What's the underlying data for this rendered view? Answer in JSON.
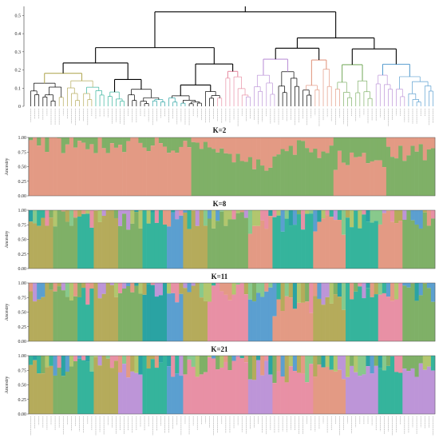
{
  "figure": {
    "palette": {
      "salmon": "#e39a84",
      "green": "#7fb067",
      "teal": "#35b49c",
      "olive": "#b5ab5b",
      "blue": "#5b9fd0",
      "pink": "#e890a5",
      "purple": "#bd95d8",
      "mint": "#88c98c",
      "yellowgreen": "#b2c66e",
      "darkteal": "#2aa3a3"
    },
    "dendrogram": {
      "y_ticks": [
        "0",
        "0.1",
        "0.2",
        "0.3",
        "0.4",
        "0.5"
      ],
      "clade_colors": [
        "#000000",
        "#b5ab5b",
        "#35b49c",
        "#000000",
        "#2aa3a3",
        "#000000",
        "#e890a5",
        "#bd95d8",
        "#000000",
        "#e39a84",
        "#7fb067",
        "#bd95d8",
        "#5b9fd0"
      ]
    }
  },
  "chart_data": [
    {
      "type": "heatmap",
      "title": "K=2",
      "ylabel": "Ancestry",
      "y_ticks": [
        "0.00",
        "0.25",
        "0.50",
        "0.75",
        "1.00"
      ],
      "ylim": [
        0,
        1
      ],
      "n_individuals": 100,
      "legend": [],
      "segments": [
        {
          "from": 0,
          "to": 40,
          "dominant": "salmon",
          "share": 0.9
        },
        {
          "from": 40,
          "to": 48,
          "dominant": "green",
          "share": 0.75
        },
        {
          "from": 48,
          "to": 60,
          "dominant": "green",
          "share": 0.6
        },
        {
          "from": 60,
          "to": 75,
          "dominant": "green",
          "share": 0.8
        },
        {
          "from": 75,
          "to": 88,
          "dominant": "salmon",
          "share": 0.6
        },
        {
          "from": 88,
          "to": 100,
          "dominant": "green",
          "share": 0.75
        }
      ]
    },
    {
      "type": "heatmap",
      "title": "K=8",
      "ylabel": "Ancestry",
      "y_ticks": [
        "0.00",
        "0.25",
        "0.50",
        "0.75",
        "1.00"
      ],
      "ylim": [
        0,
        1
      ],
      "n_individuals": 100,
      "segments": [
        {
          "from": 0,
          "to": 6,
          "dominant": "olive",
          "share": 0.85
        },
        {
          "from": 6,
          "to": 12,
          "dominant": "green",
          "share": 0.85
        },
        {
          "from": 12,
          "to": 16,
          "dominant": "teal",
          "share": 0.8
        },
        {
          "from": 16,
          "to": 22,
          "dominant": "olive",
          "share": 0.9
        },
        {
          "from": 22,
          "to": 28,
          "dominant": "green",
          "share": 0.8
        },
        {
          "from": 28,
          "to": 34,
          "dominant": "teal",
          "share": 0.9
        },
        {
          "from": 34,
          "to": 38,
          "dominant": "blue",
          "share": 0.8
        },
        {
          "from": 38,
          "to": 44,
          "dominant": "olive",
          "share": 0.85
        },
        {
          "from": 44,
          "to": 54,
          "dominant": "green",
          "share": 0.85
        },
        {
          "from": 54,
          "to": 60,
          "dominant": "salmon",
          "share": 0.75
        },
        {
          "from": 60,
          "to": 70,
          "dominant": "teal",
          "share": 0.8
        },
        {
          "from": 70,
          "to": 78,
          "dominant": "salmon",
          "share": 0.75
        },
        {
          "from": 78,
          "to": 86,
          "dominant": "teal",
          "share": 0.85
        },
        {
          "from": 86,
          "to": 92,
          "dominant": "salmon",
          "share": 0.9
        },
        {
          "from": 92,
          "to": 100,
          "dominant": "green",
          "share": 0.85
        }
      ]
    },
    {
      "type": "heatmap",
      "title": "K=11",
      "ylabel": "Ancestry",
      "y_ticks": [
        "0.00",
        "0.25",
        "0.50",
        "0.75",
        "1.00"
      ],
      "ylim": [
        0,
        1
      ],
      "n_individuals": 100,
      "segments": [
        {
          "from": 0,
          "to": 6,
          "dominant": "olive",
          "share": 0.85
        },
        {
          "from": 6,
          "to": 12,
          "dominant": "green",
          "share": 0.85
        },
        {
          "from": 12,
          "to": 16,
          "dominant": "teal",
          "share": 0.8
        },
        {
          "from": 16,
          "to": 22,
          "dominant": "olive",
          "share": 0.9
        },
        {
          "from": 22,
          "to": 28,
          "dominant": "green",
          "share": 0.8
        },
        {
          "from": 28,
          "to": 34,
          "dominant": "darkteal",
          "share": 0.9
        },
        {
          "from": 34,
          "to": 38,
          "dominant": "blue",
          "share": 0.8
        },
        {
          "from": 38,
          "to": 44,
          "dominant": "olive",
          "share": 0.85
        },
        {
          "from": 44,
          "to": 54,
          "dominant": "pink",
          "share": 0.85
        },
        {
          "from": 54,
          "to": 60,
          "dominant": "blue",
          "share": 0.75
        },
        {
          "from": 60,
          "to": 70,
          "dominant": "salmon",
          "share": 0.6
        },
        {
          "from": 70,
          "to": 78,
          "dominant": "olive",
          "share": 0.7
        },
        {
          "from": 78,
          "to": 86,
          "dominant": "teal",
          "share": 0.85
        },
        {
          "from": 86,
          "to": 92,
          "dominant": "pink",
          "share": 0.85
        },
        {
          "from": 92,
          "to": 100,
          "dominant": "green",
          "share": 0.85
        }
      ]
    },
    {
      "type": "heatmap",
      "title": "K=21",
      "ylabel": "Ancestry",
      "y_ticks": [
        "0.00",
        "0.25",
        "0.50",
        "0.75",
        "1.00"
      ],
      "ylim": [
        0,
        1
      ],
      "n_individuals": 100,
      "segments": [
        {
          "from": 0,
          "to": 6,
          "dominant": "olive",
          "share": 0.85
        },
        {
          "from": 6,
          "to": 12,
          "dominant": "green",
          "share": 0.8
        },
        {
          "from": 12,
          "to": 16,
          "dominant": "teal",
          "share": 0.8
        },
        {
          "from": 16,
          "to": 22,
          "dominant": "olive",
          "share": 0.9
        },
        {
          "from": 22,
          "to": 28,
          "dominant": "purple",
          "share": 0.75
        },
        {
          "from": 28,
          "to": 34,
          "dominant": "teal",
          "share": 0.9
        },
        {
          "from": 34,
          "to": 38,
          "dominant": "blue",
          "share": 0.8
        },
        {
          "from": 38,
          "to": 44,
          "dominant": "pink",
          "share": 0.8
        },
        {
          "from": 44,
          "to": 54,
          "dominant": "pink",
          "share": 0.85
        },
        {
          "from": 54,
          "to": 60,
          "dominant": "purple",
          "share": 0.75
        },
        {
          "from": 60,
          "to": 70,
          "dominant": "pink",
          "share": 0.7
        },
        {
          "from": 70,
          "to": 78,
          "dominant": "salmon",
          "share": 0.7
        },
        {
          "from": 78,
          "to": 86,
          "dominant": "purple",
          "share": 0.8
        },
        {
          "from": 86,
          "to": 92,
          "dominant": "teal",
          "share": 0.85
        },
        {
          "from": 92,
          "to": 100,
          "dominant": "purple",
          "share": 0.8
        }
      ]
    }
  ]
}
